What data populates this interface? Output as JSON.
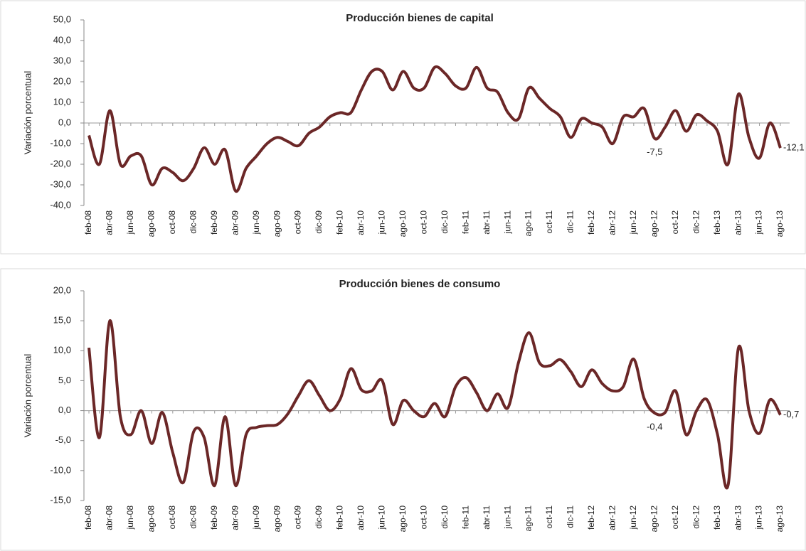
{
  "chart_data": [
    {
      "type": "line",
      "title": "Producción bienes de capital",
      "ylabel": "Variación porcentual",
      "categories": [
        "feb-08",
        null,
        "abr-08",
        null,
        "jun-08",
        null,
        "ago-08",
        null,
        "oct-08",
        null,
        "dic-08",
        null,
        "feb-09",
        null,
        "abr-09",
        null,
        "jun-09",
        null,
        "ago-09",
        null,
        "oct-09",
        null,
        "dic-09",
        null,
        "feb-10",
        null,
        "abr-10",
        null,
        "jun-10",
        null,
        "ago-10",
        null,
        "oct-10",
        null,
        "dic-10",
        null,
        "feb-11",
        null,
        "abr-11",
        null,
        "jun-11",
        null,
        "ago-11",
        null,
        "oct-11",
        null,
        "dic-11",
        null,
        "feb-12",
        null,
        "abr-12",
        null,
        "jun-12",
        null,
        "ago-12",
        null,
        "oct-12",
        null,
        "dic-12",
        null,
        "feb-13",
        null,
        "abr-13",
        null,
        "jun-13",
        null,
        "ago-13"
      ],
      "values": [
        -6,
        -20,
        6,
        -20,
        -16,
        -16,
        -30,
        -22,
        -24,
        -28,
        -22,
        -12,
        -20,
        -13,
        -33,
        -22,
        -16,
        -10,
        -7,
        -9,
        -11,
        -5,
        -2,
        3,
        5,
        5,
        16,
        25,
        25,
        16,
        25,
        17,
        17,
        27,
        24,
        18,
        17,
        27,
        17,
        15,
        5,
        2,
        17,
        12,
        7,
        3,
        -7,
        2,
        0,
        -2,
        -10,
        3,
        3,
        7,
        -7.5,
        -2,
        6,
        -4,
        4,
        1,
        -4,
        -20,
        14,
        -7,
        -17,
        0,
        -12.1
      ],
      "value_labels": [
        null,
        null,
        null,
        null,
        null,
        null,
        null,
        null,
        null,
        null,
        null,
        null,
        null,
        null,
        null,
        null,
        null,
        null,
        null,
        null,
        null,
        null,
        null,
        null,
        null,
        null,
        null,
        null,
        null,
        null,
        null,
        null,
        null,
        null,
        null,
        null,
        null,
        null,
        null,
        null,
        null,
        null,
        null,
        null,
        null,
        null,
        null,
        null,
        null,
        null,
        null,
        null,
        null,
        null,
        "-7,5",
        null,
        null,
        null,
        null,
        null,
        null,
        null,
        null,
        null,
        null,
        null,
        "-12,1"
      ],
      "color": "#6b2727",
      "ylim": [
        -40,
        50
      ],
      "yticks": [
        {
          "value": -40,
          "label": "-40,0"
        },
        {
          "value": -30,
          "label": "-30,0"
        },
        {
          "value": -20,
          "label": "-20,0"
        },
        {
          "value": -10,
          "label": "-10,0"
        },
        {
          "value": 0,
          "label": "0,0"
        },
        {
          "value": 10,
          "label": "10,0"
        },
        {
          "value": 20,
          "label": "20,0"
        },
        {
          "value": 30,
          "label": "30,0"
        },
        {
          "value": 40,
          "label": "40,0"
        },
        {
          "value": 50,
          "label": "50,0"
        }
      ]
    },
    {
      "type": "line",
      "title": "Producción bienes de consumo",
      "ylabel": "Variación porcentual",
      "categories": [
        "feb-08",
        null,
        "abr-08",
        null,
        "jun-08",
        null,
        "ago-08",
        null,
        "oct-08",
        null,
        "dic-08",
        null,
        "feb-09",
        null,
        "abr-09",
        null,
        "jun-09",
        null,
        "ago-09",
        null,
        "oct-09",
        null,
        "dic-09",
        null,
        "feb-10",
        null,
        "abr-10",
        null,
        "jun-10",
        null,
        "ago-10",
        null,
        "oct-10",
        null,
        "dic-10",
        null,
        "feb-11",
        null,
        "abr-11",
        null,
        "jun-11",
        null,
        "ago-11",
        null,
        "oct-11",
        null,
        "dic-11",
        null,
        "feb-12",
        null,
        "abr-12",
        null,
        "jun-12",
        null,
        "ago-12",
        null,
        "oct-12",
        null,
        "dic-12",
        null,
        "feb-13",
        null,
        "abr-13",
        null,
        "jun-13",
        null,
        "ago-13"
      ],
      "values": [
        10.5,
        -4.5,
        15,
        -1,
        -4,
        0,
        -5.5,
        -0.3,
        -7,
        -12,
        -3.5,
        -4.5,
        -12.5,
        -1,
        -12.5,
        -4,
        -2.8,
        -2.5,
        -2.3,
        -0.5,
        2.5,
        5,
        2.5,
        0,
        2,
        7,
        3.5,
        3.3,
        5,
        -2.3,
        1.7,
        0,
        -1,
        1.2,
        -1,
        4,
        5.5,
        3,
        0,
        2.8,
        0.5,
        8,
        13,
        8,
        7.5,
        8.5,
        6.5,
        4,
        6.8,
        4.5,
        3.3,
        4,
        8.6,
        2,
        -0.4,
        -0.3,
        3.3,
        -4,
        0,
        1.8,
        -4,
        -12.5,
        10.5,
        0,
        -3.8,
        1.8,
        -0.7
      ],
      "value_labels": [
        null,
        null,
        null,
        null,
        null,
        null,
        null,
        null,
        null,
        null,
        null,
        null,
        null,
        null,
        null,
        null,
        null,
        null,
        null,
        null,
        null,
        null,
        null,
        null,
        null,
        null,
        null,
        null,
        null,
        null,
        null,
        null,
        null,
        null,
        null,
        null,
        null,
        null,
        null,
        null,
        null,
        null,
        null,
        null,
        null,
        null,
        null,
        null,
        null,
        null,
        null,
        null,
        null,
        null,
        "-0,4",
        null,
        null,
        null,
        null,
        null,
        null,
        null,
        null,
        null,
        null,
        null,
        "-0,7"
      ],
      "color": "#6b2727",
      "ylim": [
        -15,
        20
      ],
      "yticks": [
        {
          "value": -15,
          "label": "-15,0"
        },
        {
          "value": -10,
          "label": "-10,0"
        },
        {
          "value": -5,
          "label": "-5,0"
        },
        {
          "value": 0,
          "label": "0,0"
        },
        {
          "value": 5,
          "label": "5,0"
        },
        {
          "value": 10,
          "label": "10,0"
        },
        {
          "value": 15,
          "label": "15,0"
        },
        {
          "value": 20,
          "label": "20,0"
        }
      ]
    }
  ]
}
